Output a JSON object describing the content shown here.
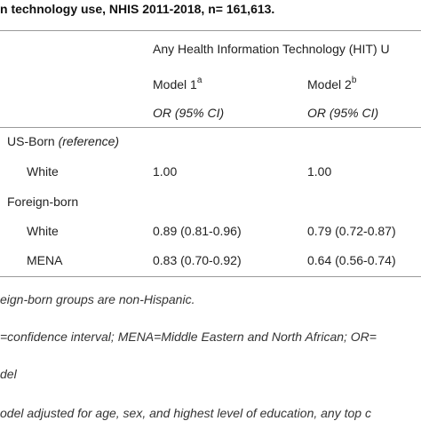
{
  "caption": "n technology use, NHIS 2011-2018, n= 161,613.",
  "table": {
    "group_header": "Any Health Information Technology (HIT) U",
    "model1": {
      "label": "Model 1",
      "sup": "a",
      "stat": "OR (95% CI)"
    },
    "model2": {
      "label": "Model 2",
      "sup": "b",
      "stat": "OR (95% CI)"
    },
    "sections": [
      {
        "label": "US-Born",
        "label_note": "(reference)",
        "rows": [
          {
            "label": "White",
            "m1": "1.00",
            "m2": "1.00"
          }
        ]
      },
      {
        "label": "Foreign-born",
        "label_note": "",
        "rows": [
          {
            "label": "White",
            "m1": "0.89 (0.81-0.96)",
            "m2": "0.79 (0.72-0.87)"
          },
          {
            "label": "MENA",
            "m1": "0.83 (0.70-0.92)",
            "m2": "0.64 (0.56-0.74)"
          }
        ]
      }
    ]
  },
  "notes": [
    "eign-born groups are non-Hispanic.",
    "=confidence interval; MENA=Middle Eastern and North African; OR=",
    "del",
    "odel adjusted for age, sex, and highest level of education, any top c"
  ]
}
